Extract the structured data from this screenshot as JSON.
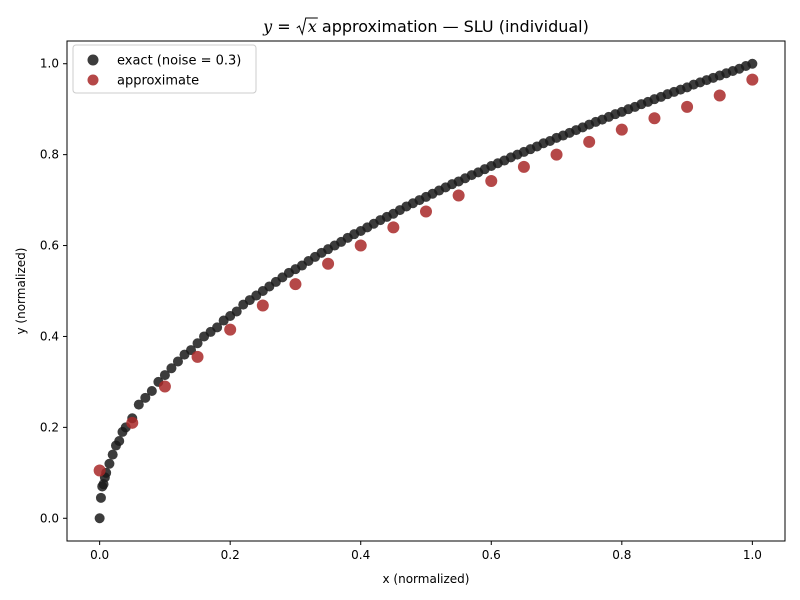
{
  "chart_data": {
    "type": "scatter",
    "title": {
      "formula_var_y": "y",
      "formula_eq": " = ",
      "formula_var_x": "x",
      "rest": " approximation — SLU (individual)"
    },
    "xlabel": "x (normalized)",
    "ylabel": "y (normalized)",
    "xlim": [
      -0.05,
      1.05
    ],
    "ylim": [
      -0.05,
      1.05
    ],
    "xticks": [
      0.0,
      0.2,
      0.4,
      0.6,
      0.8,
      1.0
    ],
    "xtick_labels": [
      "0.0",
      "0.2",
      "0.4",
      "0.6",
      "0.8",
      "1.0"
    ],
    "yticks": [
      0.0,
      0.2,
      0.4,
      0.6,
      0.8,
      1.0
    ],
    "ytick_labels": [
      "0.0",
      "0.2",
      "0.4",
      "0.6",
      "0.8",
      "1.0"
    ],
    "grid": false,
    "legend_position": "top-left",
    "series": [
      {
        "name": "exact (noise = 0.3)",
        "color": "#1a1a1a",
        "x": [
          0.0,
          0.002,
          0.004,
          0.006,
          0.008,
          0.01,
          0.015,
          0.02,
          0.025,
          0.03,
          0.035,
          0.04,
          0.05,
          0.06,
          0.07,
          0.08,
          0.09,
          0.1,
          0.11,
          0.12,
          0.13,
          0.14,
          0.15,
          0.16,
          0.17,
          0.18,
          0.19,
          0.2,
          0.21,
          0.22,
          0.23,
          0.24,
          0.25,
          0.26,
          0.27,
          0.28,
          0.29,
          0.3,
          0.31,
          0.32,
          0.33,
          0.34,
          0.35,
          0.36,
          0.37,
          0.38,
          0.39,
          0.4,
          0.41,
          0.42,
          0.43,
          0.44,
          0.45,
          0.46,
          0.47,
          0.48,
          0.49,
          0.5,
          0.51,
          0.52,
          0.53,
          0.54,
          0.55,
          0.56,
          0.57,
          0.58,
          0.59,
          0.6,
          0.61,
          0.62,
          0.63,
          0.64,
          0.65,
          0.66,
          0.67,
          0.68,
          0.69,
          0.7,
          0.71,
          0.72,
          0.73,
          0.74,
          0.75,
          0.76,
          0.77,
          0.78,
          0.79,
          0.8,
          0.81,
          0.82,
          0.83,
          0.84,
          0.85,
          0.86,
          0.87,
          0.88,
          0.89,
          0.9,
          0.91,
          0.92,
          0.93,
          0.94,
          0.95,
          0.96,
          0.97,
          0.98,
          0.99,
          1.0
        ],
        "y": [
          0.0,
          0.045,
          0.07,
          0.075,
          0.09,
          0.1,
          0.12,
          0.14,
          0.16,
          0.17,
          0.19,
          0.2,
          0.22,
          0.25,
          0.265,
          0.28,
          0.3,
          0.315,
          0.33,
          0.345,
          0.36,
          0.37,
          0.385,
          0.4,
          0.41,
          0.42,
          0.435,
          0.445,
          0.455,
          0.47,
          0.48,
          0.49,
          0.5,
          0.51,
          0.52,
          0.53,
          0.54,
          0.548,
          0.556,
          0.566,
          0.575,
          0.584,
          0.592,
          0.6,
          0.608,
          0.617,
          0.625,
          0.632,
          0.64,
          0.648,
          0.656,
          0.663,
          0.67,
          0.678,
          0.686,
          0.693,
          0.7,
          0.707,
          0.714,
          0.721,
          0.728,
          0.735,
          0.741,
          0.748,
          0.755,
          0.761,
          0.768,
          0.775,
          0.781,
          0.787,
          0.794,
          0.8,
          0.806,
          0.812,
          0.818,
          0.825,
          0.83,
          0.837,
          0.842,
          0.848,
          0.854,
          0.86,
          0.866,
          0.872,
          0.877,
          0.883,
          0.889,
          0.894,
          0.9,
          0.905,
          0.911,
          0.916,
          0.922,
          0.927,
          0.933,
          0.938,
          0.943,
          0.948,
          0.954,
          0.959,
          0.964,
          0.969,
          0.974,
          0.979,
          0.984,
          0.989,
          0.995,
          1.0
        ]
      },
      {
        "name": "approximate",
        "color": "#a82828",
        "x": [
          0.0,
          0.05,
          0.1,
          0.15,
          0.2,
          0.25,
          0.3,
          0.35,
          0.4,
          0.45,
          0.5,
          0.55,
          0.6,
          0.65,
          0.7,
          0.75,
          0.8,
          0.85,
          0.9,
          0.95,
          1.0
        ],
        "y": [
          0.105,
          0.21,
          0.29,
          0.355,
          0.415,
          0.468,
          0.515,
          0.56,
          0.6,
          0.64,
          0.675,
          0.71,
          0.742,
          0.773,
          0.8,
          0.828,
          0.855,
          0.88,
          0.905,
          0.93,
          0.965
        ]
      }
    ]
  }
}
